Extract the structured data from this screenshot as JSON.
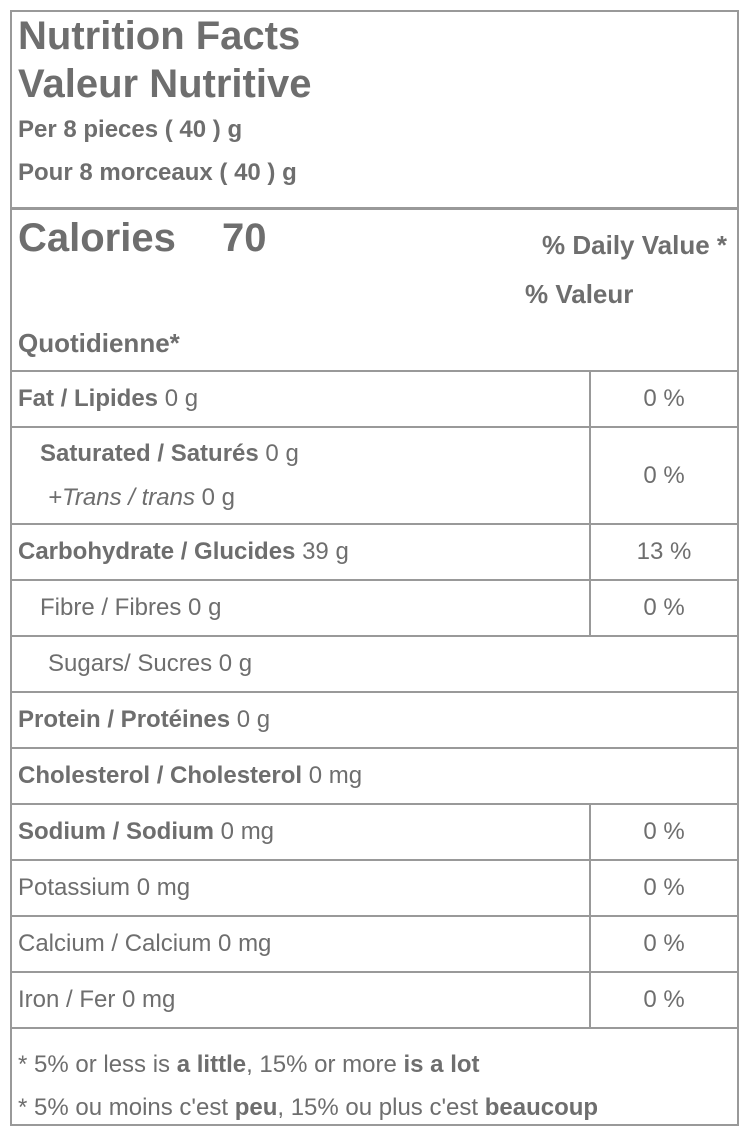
{
  "header": {
    "title": "Nutrition Facts",
    "title_fr": "Valeur Nutritive",
    "serving": "Per 8 pieces ( 40 ) g",
    "serving_fr": "Pour 8 morceaux ( 40 ) g"
  },
  "calories": {
    "label": "Calories",
    "value": "70",
    "dv_heading": "% Daily Value *",
    "dv_heading_fr": "% Valeur",
    "dv_heading_fr_cont": "Quotidienne*"
  },
  "rows": [
    {
      "label": "Fat / Lipides",
      "amount": "0 g",
      "dv": "0 %"
    },
    {
      "label": "Saturated / Saturés",
      "amount": "0 g",
      "sub_label": "+Trans / trans",
      "sub_amount": "0 g",
      "dv": "0 %"
    },
    {
      "label": "Carbohydrate / Glucides",
      "amount": "39 g",
      "dv": "13 %"
    },
    {
      "label": "Fibre / Fibres",
      "amount": "0 g",
      "dv": "0 %"
    },
    {
      "label": "Sugars/ Sucres",
      "amount": "0 g"
    },
    {
      "label": "Protein / Protéines",
      "amount": "0 g"
    },
    {
      "label": "Cholesterol / Cholesterol",
      "amount": "0 mg"
    },
    {
      "label": "Sodium / Sodium",
      "amount": "0 mg",
      "dv": "0 %"
    },
    {
      "label": "Potassium",
      "amount": "0 mg",
      "dv": "0 %"
    },
    {
      "label": "Calcium / Calcium",
      "amount": "0 mg",
      "dv": "0 %"
    },
    {
      "label": "Iron / Fer",
      "amount": "0 mg",
      "dv": "0 %"
    }
  ],
  "footnotes": [
    [
      "* 5% or less is",
      "a little",
      ", 15% or more",
      "is a lot"
    ],
    [
      "* 5% ou moins c'est",
      "peu",
      ", 15% ou plus c'est",
      "beaucoup"
    ]
  ]
}
